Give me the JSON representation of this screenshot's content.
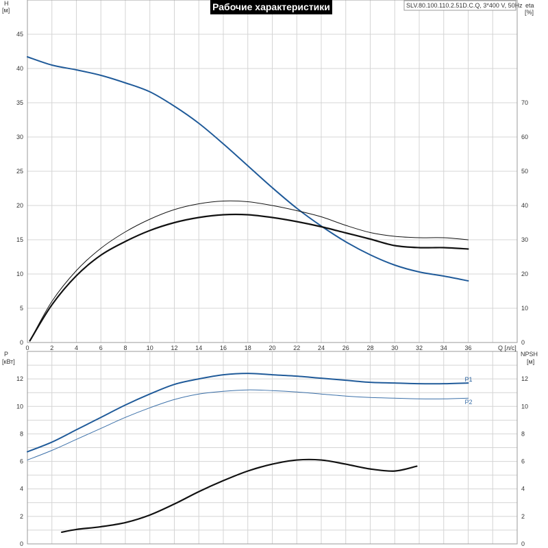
{
  "title": "Рабочие характеристики",
  "model": "SLV.80.100.110.2.51D.C.Q, 3*400 V, 50Hz",
  "colors": {
    "blue": "#1f5a99",
    "blue_light": "#3a6fa8",
    "black": "#111111",
    "grid": "#d4d4d4"
  },
  "chart_data": [
    {
      "type": "line",
      "name": "upper",
      "xlabel": "Q [л/с]",
      "ylabel_left": "H\n[м]",
      "ylabel_right": "eta\n[%]",
      "xlim": [
        0,
        40
      ],
      "ylim_left": [
        0,
        50
      ],
      "ylim_right": [
        0,
        100
      ],
      "x_ticks": [
        0,
        2,
        4,
        6,
        8,
        10,
        12,
        14,
        16,
        18,
        20,
        22,
        24,
        26,
        28,
        30,
        32,
        34,
        36
      ],
      "y_left_ticks": [
        0,
        5,
        10,
        15,
        20,
        25,
        30,
        35,
        40,
        45
      ],
      "y_right_ticks": [
        0,
        10,
        20,
        30,
        40,
        50,
        60,
        70
      ],
      "grid": true,
      "series": [
        {
          "axis": "left",
          "color": "#1f5a99",
          "width": 2,
          "x": [
            0,
            2,
            4,
            6,
            8,
            10,
            12,
            14,
            16,
            18,
            20,
            22,
            24,
            26,
            28,
            30,
            32,
            34,
            36
          ],
          "y": [
            41.7,
            40.5,
            39.8,
            39.0,
            37.9,
            36.6,
            34.5,
            32.0,
            29.0,
            25.8,
            22.6,
            19.6,
            17.0,
            14.7,
            12.8,
            11.3,
            10.3,
            9.7,
            9.0
          ]
        },
        {
          "axis": "right",
          "color": "#111111",
          "width": 2.2,
          "x": [
            0.2,
            2,
            4,
            6,
            8,
            10,
            12,
            14,
            16,
            18,
            20,
            22,
            24,
            26,
            28,
            30,
            32,
            34,
            36
          ],
          "y": [
            0.5,
            11,
            19.5,
            25.5,
            29.5,
            32.7,
            35.0,
            36.5,
            37.3,
            37.3,
            36.5,
            35.3,
            33.8,
            32.0,
            30.2,
            28.3,
            27.7,
            27.7,
            27.3
          ]
        },
        {
          "axis": "right",
          "color": "#111111",
          "width": 1,
          "x": [
            0.2,
            2,
            4,
            6,
            8,
            10,
            12,
            14,
            16,
            18,
            20,
            22,
            24,
            26,
            28,
            30,
            32,
            34,
            36
          ],
          "y": [
            0.5,
            12,
            21.0,
            27.5,
            32.3,
            36.0,
            38.8,
            40.5,
            41.3,
            41.1,
            40.0,
            38.5,
            36.7,
            34.2,
            32.1,
            31.0,
            30.6,
            30.6,
            30.0
          ]
        }
      ]
    },
    {
      "type": "line",
      "name": "lower",
      "ylabel_left": "P\n[кВт]",
      "ylabel_right": "NPSH\n[м]",
      "xlim": [
        0,
        40
      ],
      "ylim_left": [
        0,
        14
      ],
      "ylim_right": [
        0,
        14
      ],
      "y_left_ticks": [
        0,
        2,
        4,
        6,
        8,
        10,
        12
      ],
      "y_right_ticks": [
        0,
        2,
        4,
        6,
        8,
        10,
        12
      ],
      "grid": true,
      "series": [
        {
          "name": "P1",
          "axis": "left",
          "color": "#1f5a99",
          "width": 2,
          "x": [
            0,
            2,
            4,
            6,
            8,
            10,
            12,
            14,
            16,
            18,
            20,
            22,
            24,
            26,
            28,
            30,
            32,
            34,
            36
          ],
          "y": [
            6.7,
            7.4,
            8.3,
            9.2,
            10.1,
            10.9,
            11.6,
            12.0,
            12.3,
            12.4,
            12.3,
            12.2,
            12.05,
            11.9,
            11.75,
            11.7,
            11.65,
            11.65,
            11.7
          ]
        },
        {
          "name": "P2",
          "axis": "left",
          "color": "#3a6fa8",
          "width": 1,
          "x": [
            0,
            2,
            4,
            6,
            8,
            10,
            12,
            14,
            16,
            18,
            20,
            22,
            24,
            26,
            28,
            30,
            32,
            34,
            36
          ],
          "y": [
            6.1,
            6.8,
            7.6,
            8.4,
            9.2,
            9.9,
            10.5,
            10.9,
            11.1,
            11.2,
            11.15,
            11.05,
            10.9,
            10.75,
            10.65,
            10.6,
            10.55,
            10.55,
            10.6
          ]
        },
        {
          "axis": "right",
          "color": "#111111",
          "width": 2.2,
          "x": [
            2.8,
            4,
            6,
            8,
            10,
            12,
            14,
            16,
            18,
            20,
            22,
            24,
            26,
            28,
            30,
            31.8
          ],
          "y": [
            0.85,
            1.05,
            1.25,
            1.55,
            2.1,
            2.9,
            3.8,
            4.6,
            5.3,
            5.8,
            6.1,
            6.1,
            5.8,
            5.45,
            5.3,
            5.65
          ]
        }
      ],
      "labels": [
        "P1",
        "P2"
      ]
    }
  ]
}
